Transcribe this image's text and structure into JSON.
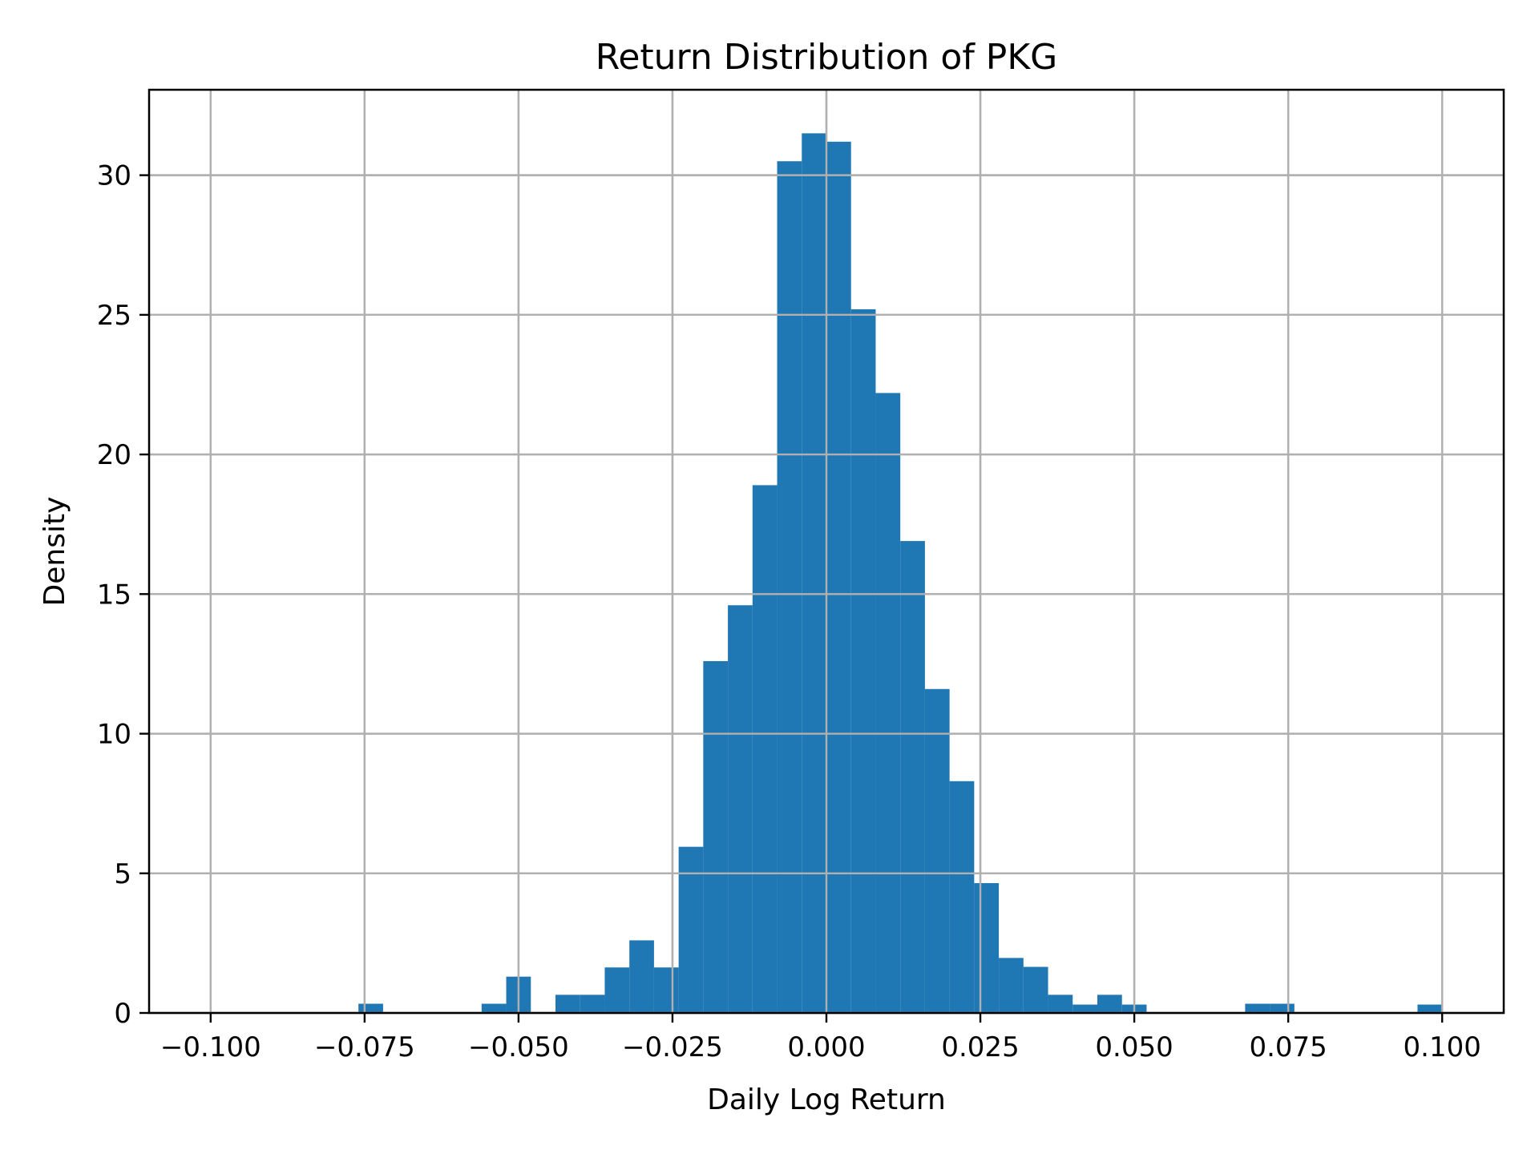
{
  "chart_data": {
    "type": "bar",
    "subtype": "histogram",
    "title": "Return Distribution of PKG",
    "xlabel": "Daily Log Return",
    "ylabel": "Density",
    "xlim": [
      -0.11,
      0.11
    ],
    "ylim": [
      0,
      33.06
    ],
    "grid": true,
    "legend": null,
    "bar_color": "#1f77b4",
    "grid_color": "#b0b0b0",
    "bin_width": 0.004,
    "x_ticks": [
      -0.1,
      -0.075,
      -0.05,
      -0.025,
      0.0,
      0.025,
      0.05,
      0.075,
      0.1
    ],
    "x_tick_labels": [
      "−0.100",
      "−0.075",
      "−0.050",
      "−0.025",
      "0.000",
      "0.025",
      "0.050",
      "0.075",
      "0.100"
    ],
    "y_ticks": [
      0,
      5,
      10,
      15,
      20,
      25,
      30
    ],
    "y_tick_labels": [
      "0",
      "5",
      "10",
      "15",
      "20",
      "25",
      "30"
    ],
    "bins": [
      {
        "x0": -0.076,
        "x1": -0.072,
        "density": 0.33
      },
      {
        "x0": -0.056,
        "x1": -0.052,
        "density": 0.33
      },
      {
        "x0": -0.052,
        "x1": -0.048,
        "density": 1.3
      },
      {
        "x0": -0.044,
        "x1": -0.04,
        "density": 0.65
      },
      {
        "x0": -0.04,
        "x1": -0.036,
        "density": 0.65
      },
      {
        "x0": -0.036,
        "x1": -0.032,
        "density": 1.63
      },
      {
        "x0": -0.032,
        "x1": -0.028,
        "density": 2.6
      },
      {
        "x0": -0.028,
        "x1": -0.024,
        "density": 1.63
      },
      {
        "x0": -0.024,
        "x1": -0.02,
        "density": 5.95
      },
      {
        "x0": -0.02,
        "x1": -0.016,
        "density": 12.6
      },
      {
        "x0": -0.016,
        "x1": -0.012,
        "density": 14.6
      },
      {
        "x0": -0.012,
        "x1": -0.008,
        "density": 18.9
      },
      {
        "x0": -0.008,
        "x1": -0.004,
        "density": 30.5
      },
      {
        "x0": -0.004,
        "x1": 0.0,
        "density": 31.5
      },
      {
        "x0": 0.0,
        "x1": 0.004,
        "density": 31.2
      },
      {
        "x0": 0.004,
        "x1": 0.008,
        "density": 25.2
      },
      {
        "x0": 0.008,
        "x1": 0.012,
        "density": 22.2
      },
      {
        "x0": 0.012,
        "x1": 0.016,
        "density": 16.9
      },
      {
        "x0": 0.016,
        "x1": 0.02,
        "density": 11.6
      },
      {
        "x0": 0.02,
        "x1": 0.024,
        "density": 8.3
      },
      {
        "x0": 0.024,
        "x1": 0.028,
        "density": 4.65
      },
      {
        "x0": 0.028,
        "x1": 0.032,
        "density": 1.97
      },
      {
        "x0": 0.032,
        "x1": 0.036,
        "density": 1.65
      },
      {
        "x0": 0.036,
        "x1": 0.04,
        "density": 0.65
      },
      {
        "x0": 0.04,
        "x1": 0.044,
        "density": 0.3
      },
      {
        "x0": 0.044,
        "x1": 0.048,
        "density": 0.65
      },
      {
        "x0": 0.048,
        "x1": 0.052,
        "density": 0.3
      },
      {
        "x0": 0.068,
        "x1": 0.072,
        "density": 0.33
      },
      {
        "x0": 0.072,
        "x1": 0.076,
        "density": 0.33
      },
      {
        "x0": 0.096,
        "x1": 0.1,
        "density": 0.3
      }
    ]
  }
}
